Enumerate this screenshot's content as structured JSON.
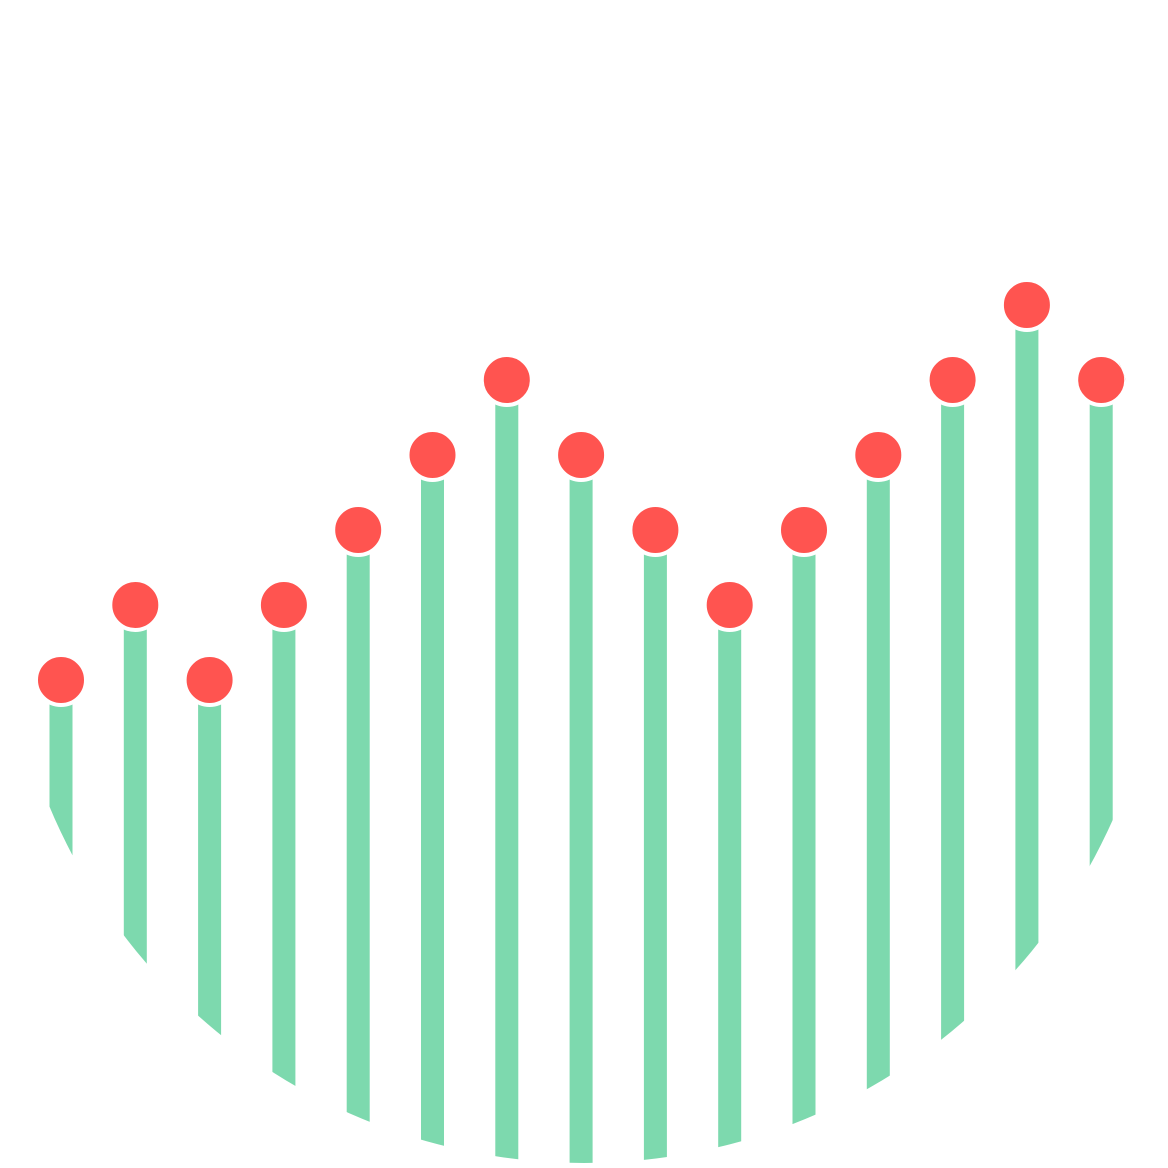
{
  "chart_data": {
    "type": "lollipop",
    "values": [
      1,
      2,
      1,
      2,
      3,
      4,
      5,
      4,
      3,
      2,
      3,
      4,
      5,
      6,
      5
    ],
    "color": "#7dd9ae",
    "marker_color": "#ff5450"
  }
}
